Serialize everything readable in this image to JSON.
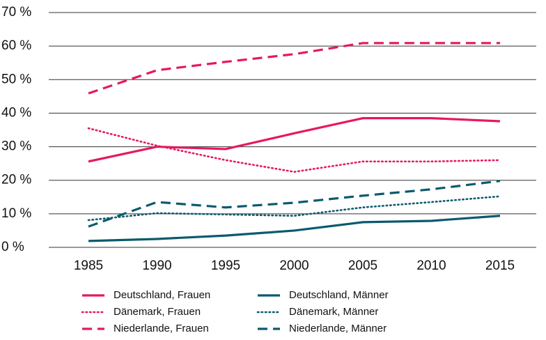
{
  "chart_data": {
    "type": "line",
    "x": [
      1985,
      1990,
      1995,
      2000,
      2005,
      2010,
      2015
    ],
    "xlim": [
      1985,
      2015
    ],
    "ylim": [
      0,
      70
    ],
    "yticks": [
      {
        "value": 0,
        "label": "0 %"
      },
      {
        "value": 10,
        "label": "10 %"
      },
      {
        "value": 20,
        "label": "20 %"
      },
      {
        "value": 30,
        "label": "30 %"
      },
      {
        "value": 40,
        "label": "40 %"
      },
      {
        "value": 50,
        "label": "50 %"
      },
      {
        "value": 60,
        "label": "60 %"
      },
      {
        "value": 70,
        "label": "70 %"
      }
    ],
    "grid": true,
    "series": [
      {
        "name": "Deutschland, Frauen",
        "color": "#e6195c",
        "style": "solid",
        "values": [
          25.6,
          30,
          29.3,
          34,
          38.5,
          38.5,
          37.6
        ]
      },
      {
        "name": "Deutschland, Männer",
        "color": "#0b5a6e",
        "style": "solid",
        "values": [
          1.9,
          2.5,
          3.5,
          5,
          7.5,
          7.9,
          9.4
        ]
      },
      {
        "name": "Dänemark, Frauen",
        "color": "#e6195c",
        "style": "dotted",
        "values": [
          35.5,
          30.3,
          26,
          22.5,
          25.6,
          25.6,
          26
        ]
      },
      {
        "name": "Dänemark, Männer",
        "color": "#0b5a6e",
        "style": "dotted",
        "values": [
          8.1,
          10.2,
          9.8,
          9.4,
          11.9,
          13.5,
          15.2
        ]
      },
      {
        "name": "Niederlande, Frauen",
        "color": "#e6195c",
        "style": "dashed",
        "values": [
          45.9,
          52.8,
          55.3,
          57.6,
          60.9,
          60.9,
          60.9
        ]
      },
      {
        "name": "Niederlande, Männer",
        "color": "#0b5a6e",
        "style": "dashed",
        "values": [
          6.2,
          13.5,
          11.9,
          13.3,
          15.4,
          17.3,
          19.8
        ]
      }
    ]
  }
}
